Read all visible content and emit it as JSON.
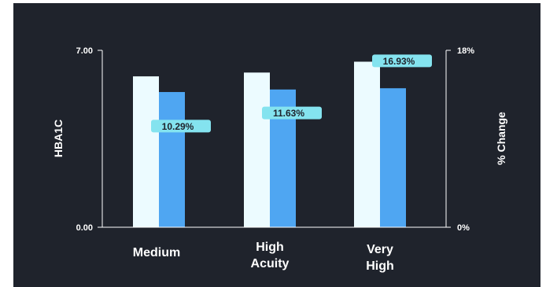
{
  "chart_data": {
    "type": "bar",
    "title": "",
    "categories": [
      [
        "Medium"
      ],
      [
        "High",
        "Acuity"
      ],
      [
        "Very",
        "High"
      ]
    ],
    "series": [
      {
        "values": [
          5.97,
          6.12,
          6.55
        ],
        "color": "#ecfbff"
      },
      {
        "values": [
          5.35,
          5.45,
          5.5
        ],
        "color": "#4fa6f2"
      }
    ],
    "pct_change": {
      "values": [
        10.29,
        11.63,
        16.93
      ],
      "labels": [
        "10.29%",
        "11.63%",
        "16.93%"
      ],
      "color": "#84e3ef"
    },
    "ylabel": "HBA1C",
    "ylim": [
      0,
      7
    ],
    "y_tick_labels": [
      "0.00",
      "7.00"
    ],
    "y2label": "% Change",
    "y2lim": [
      0,
      18
    ],
    "y2_tick_labels": [
      "0%",
      "18%"
    ],
    "grid": false
  }
}
